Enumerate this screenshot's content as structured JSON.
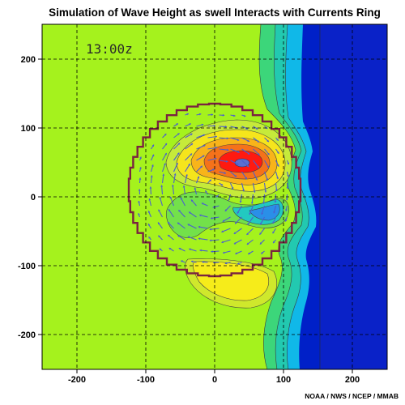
{
  "chart_data": {
    "type": "heatmap",
    "title": "Simulation of Wave Height as swell Interacts with Currents Ring",
    "timestamp": "13:00z",
    "credit": "NOAA / NWS / NCEP / MMAB",
    "xlim": [
      -250,
      250
    ],
    "ylim": [
      -250,
      250
    ],
    "x_ticks": [
      -200,
      -100,
      0,
      100,
      200
    ],
    "y_ticks": [
      200,
      100,
      0,
      -100,
      -200
    ],
    "grid": true,
    "grid_style": "dashed",
    "colors": {
      "background_swell": "#a5f21d",
      "low_wave_height": "#0020c8",
      "peak_wave_height": "#ff1a10",
      "current_vectors": "#4a5fd0",
      "ring_boundary": "#7a2340",
      "contour_lines": "#404040"
    },
    "features": {
      "ring_center": [
        0,
        10
      ],
      "ring_radius": 125,
      "wave_height_maximum_at": [
        40,
        50
      ]
    }
  }
}
